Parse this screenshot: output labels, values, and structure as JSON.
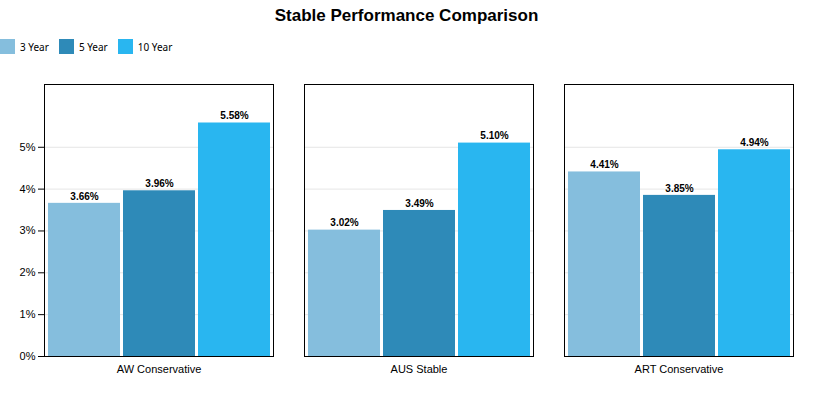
{
  "chart_data": {
    "type": "bar",
    "title": "Stable Performance Comparison",
    "categories": [
      "AW Conservative",
      "AUS Stable",
      "ART Conservative"
    ],
    "series": [
      {
        "name": "3 Year",
        "color": "#85bedd",
        "values": [
          3.66,
          3.02,
          4.41
        ],
        "value_labels": [
          "3.66%",
          "3.02%",
          "4.41%"
        ]
      },
      {
        "name": "5 Year",
        "color": "#2e8ab8",
        "values": [
          3.96,
          3.49,
          3.85
        ],
        "value_labels": [
          "3.96%",
          "3.49%",
          "3.85%"
        ]
      },
      {
        "name": "10 Year",
        "color": "#29b6f0",
        "values": [
          5.58,
          5.1,
          4.94
        ],
        "value_labels": [
          "5.58%",
          "5.10%",
          "4.94%"
        ]
      }
    ],
    "ylim": [
      0,
      6.5
    ],
    "yticks": [
      {
        "value": 0,
        "label": "0%"
      },
      {
        "value": 1,
        "label": "1%"
      },
      {
        "value": 2,
        "label": "2%"
      },
      {
        "value": 3,
        "label": "3%"
      },
      {
        "value": 4,
        "label": "4%"
      },
      {
        "value": 5,
        "label": "5%"
      }
    ],
    "grid": true,
    "legend": "top",
    "data_labels": true
  }
}
